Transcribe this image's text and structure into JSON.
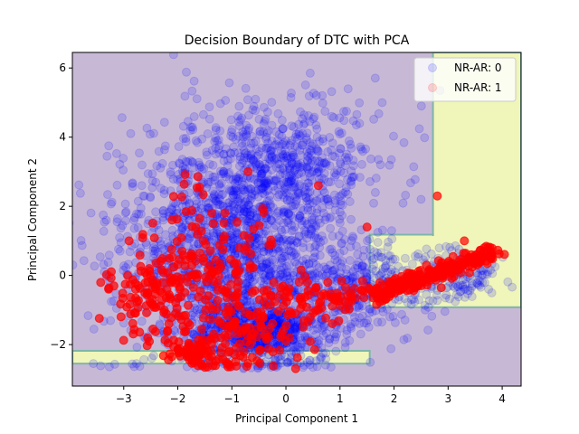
{
  "chart_data": {
    "type": "scatter",
    "title": "Decision Boundary of DTC with PCA",
    "xlabel": "Principal Component 1",
    "ylabel": "Principal Component 2",
    "xlim": [
      -3.95,
      4.35
    ],
    "ylim": [
      -3.2,
      6.45
    ],
    "xticks": [
      -3,
      -2,
      -1,
      0,
      1,
      2,
      3,
      4
    ],
    "yticks": [
      -2,
      0,
      2,
      4,
      6
    ],
    "legend_position": "top-right",
    "grid": false,
    "colors": {
      "background_region": "#c7b9d6",
      "positive_region": "#f0f5b9",
      "region_border": "#7fb6a8",
      "class0": "#0000ff",
      "class1": "#ff0000"
    },
    "decision_regions": {
      "default_class": "NR-AR: 0",
      "positive_class": "NR-AR: 1",
      "positive_rectangles": [
        {
          "x": [
            2.72,
            4.35
          ],
          "y": [
            -0.92,
            6.45
          ]
        },
        {
          "x": [
            1.55,
            2.72
          ],
          "y": [
            -0.92,
            1.18
          ]
        },
        {
          "x": [
            -3.95,
            1.55
          ],
          "y": [
            -2.55,
            -2.18
          ]
        }
      ]
    },
    "series": [
      {
        "name": "NR-AR: 0",
        "color": "#0000ff",
        "alpha": 0.15,
        "clusters": [
          {
            "cx": -1.0,
            "cy": 0.8,
            "sx": 1.1,
            "sy": 1.6,
            "n": 1500
          },
          {
            "cx": 0.0,
            "cy": 3.2,
            "sx": 0.9,
            "sy": 1.0,
            "n": 500
          },
          {
            "cx": -0.5,
            "cy": -1.6,
            "sx": 0.7,
            "sy": 0.5,
            "n": 600
          },
          {
            "cx": 1.4,
            "cy": -0.4,
            "sx": 0.6,
            "sy": 0.6,
            "n": 300
          },
          {
            "cx": 3.2,
            "cy": 0.0,
            "sx": 0.4,
            "sy": 0.4,
            "n": 150
          }
        ],
        "points": [
          [
            0.45,
            5.85
          ],
          [
            1.15,
            5.4
          ],
          [
            2.85,
            5.35
          ],
          [
            0.85,
            4.6
          ],
          [
            1.95,
            3.35
          ],
          [
            2.5,
            2.2
          ]
        ]
      },
      {
        "name": "NR-AR: 1",
        "color": "#ff0000",
        "alpha": 0.7,
        "clusters": [
          {
            "cx": -2.4,
            "cy": -0.6,
            "sx": 0.5,
            "sy": 0.6,
            "n": 120
          },
          {
            "cx": -1.5,
            "cy": 0.6,
            "sx": 0.6,
            "sy": 1.0,
            "n": 120
          },
          {
            "cx": -0.8,
            "cy": -1.6,
            "sx": 0.5,
            "sy": 0.7,
            "n": 120
          },
          {
            "cx": -1.7,
            "cy": -2.2,
            "sx": 0.3,
            "sy": 0.2,
            "n": 70
          },
          {
            "cx": 0.5,
            "cy": -0.8,
            "sx": 0.5,
            "sy": 0.5,
            "n": 60
          },
          {
            "cx": 1.2,
            "cy": -0.6,
            "sx": 0.3,
            "sy": 0.2,
            "n": 20
          }
        ],
        "line_clusters": [
          {
            "x0": 1.6,
            "y0": -0.55,
            "x1": 3.9,
            "y1": 0.7,
            "spread": 0.12,
            "n": 260
          }
        ],
        "points": [
          [
            2.8,
            2.3
          ],
          [
            3.3,
            1.0
          ],
          [
            -0.7,
            3.0
          ],
          [
            1.5,
            1.4
          ],
          [
            0.6,
            2.6
          ],
          [
            -2.9,
            1.0
          ],
          [
            2.6,
            0.3
          ]
        ]
      }
    ]
  }
}
